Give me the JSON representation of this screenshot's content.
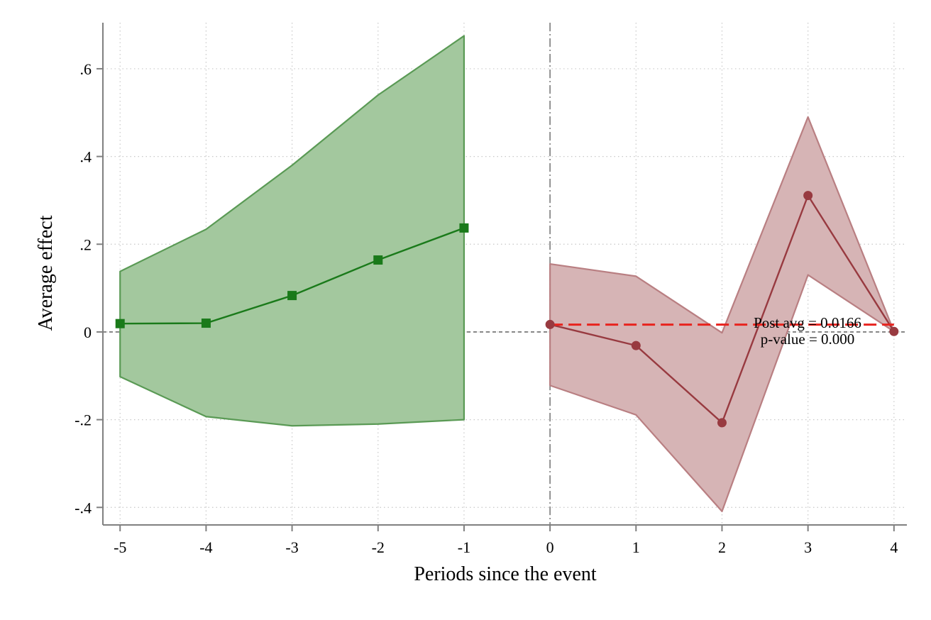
{
  "chart_data": {
    "type": "line",
    "title": "",
    "xlabel": "Periods since the event",
    "ylabel": "Average effect",
    "xlim": [
      -5.2,
      4.15
    ],
    "ylim": [
      -0.44,
      0.705
    ],
    "x_ticks": [
      -5,
      -4,
      -3,
      -2,
      -1,
      0,
      1,
      2,
      3,
      4
    ],
    "x_tick_labels": [
      "-5",
      "-4",
      "-3",
      "-2",
      "-1",
      "0",
      "1",
      "2",
      "3",
      "4"
    ],
    "y_ticks": [
      -0.4,
      -0.2,
      0,
      0.2,
      0.4,
      0.6
    ],
    "y_tick_labels": [
      "-.4",
      "-.2",
      "0",
      ".2",
      ".4",
      ".6"
    ],
    "grid": true,
    "legend": "none",
    "event_line_x": 0,
    "zero_line_y": 0,
    "series": [
      {
        "marker": "square",
        "color": "#1a7a1a",
        "band_fill": "#a3c89e",
        "band_stroke": "#5a9a55",
        "x": [
          -5,
          -4,
          -3,
          -2,
          -1
        ],
        "y": [
          0.019,
          0.02,
          0.083,
          0.164,
          0.237
        ],
        "ci_lower": [
          -0.102,
          -0.193,
          -0.214,
          -0.21,
          -0.2
        ],
        "ci_upper": [
          0.138,
          0.234,
          0.38,
          0.54,
          0.675
        ]
      },
      {
        "marker": "circle",
        "color": "#983a40",
        "band_fill": "#d6b4b5",
        "band_stroke": "#b97f82",
        "x": [
          0,
          1,
          2,
          3,
          4
        ],
        "y": [
          0.017,
          -0.031,
          -0.207,
          0.311,
          0.001
        ],
        "ci_lower": [
          -0.122,
          -0.189,
          -0.409,
          0.13,
          0.001
        ],
        "ci_upper": [
          0.155,
          0.127,
          -0.002,
          0.49,
          0.001
        ]
      }
    ],
    "post_average": {
      "value": 0.0166,
      "x_start": 0,
      "x_end": 4,
      "color": "#e8231e",
      "label_line1": "Post avg = 0.0166",
      "label_line2": "p-value = 0.000"
    }
  }
}
